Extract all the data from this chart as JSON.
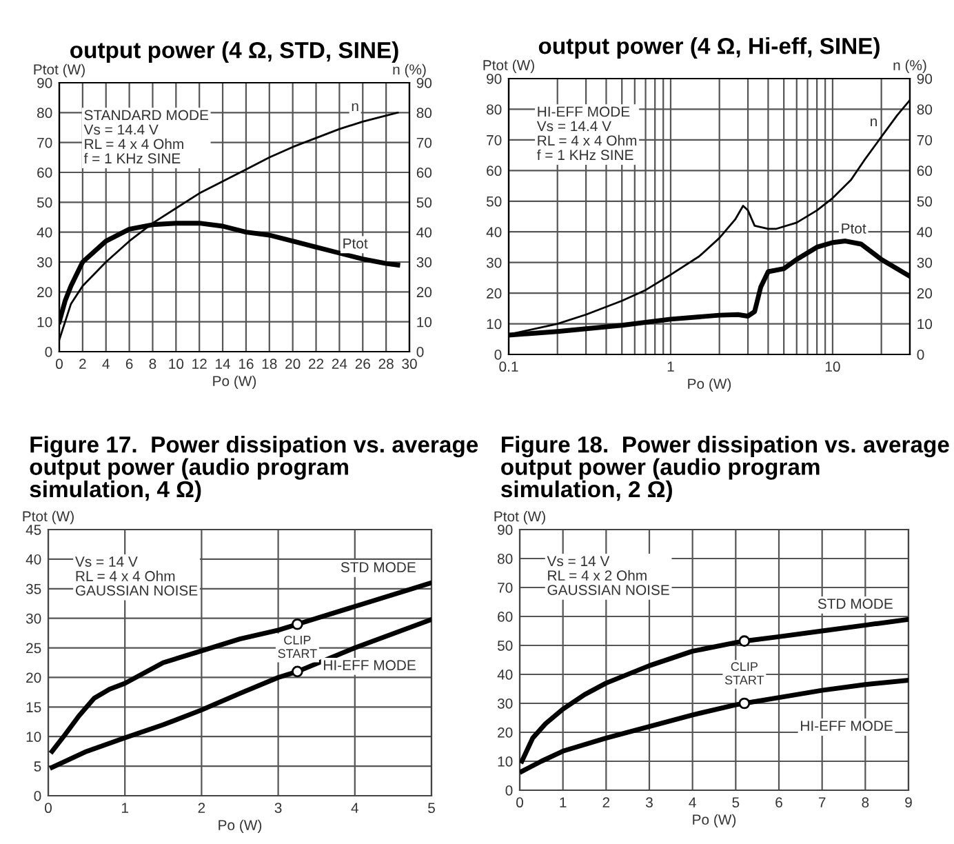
{
  "chart_data": [
    {
      "type": "line",
      "title": "output power (4 Ω, STD, SINE)",
      "xlabel": "Po (W)",
      "ylabel": "Ptot (W)",
      "y2label": "n (%)",
      "xlim": [
        0,
        30
      ],
      "xticks": [
        0,
        2,
        4,
        6,
        8,
        10,
        12,
        14,
        16,
        18,
        20,
        22,
        24,
        26,
        28,
        30
      ],
      "ylim": [
        0,
        90
      ],
      "yticks": [
        0,
        10,
        20,
        30,
        40,
        50,
        60,
        70,
        80,
        90
      ],
      "y2lim": [
        0,
        90
      ],
      "y2ticks": [
        0,
        10,
        20,
        30,
        40,
        50,
        60,
        70,
        80,
        90
      ],
      "grid": true,
      "annotations": [
        "STANDARD MODE\nVs = 14.4 V\nRL = 4 x 4 Ohm\nf = 1 KHz SINE"
      ],
      "series": [
        {
          "name": "Ptot",
          "color": "#000000",
          "x": [
            0,
            0.5,
            1,
            2,
            4,
            6,
            8,
            10,
            12,
            14,
            16,
            18,
            20,
            22,
            24,
            26,
            28,
            29
          ],
          "values": [
            10,
            17,
            22,
            30,
            37,
            41,
            42.5,
            43,
            43,
            42,
            40,
            39,
            37,
            35,
            33,
            31,
            29.5,
            29
          ]
        },
        {
          "name": "n",
          "color": "#000000",
          "axis": "y2",
          "x": [
            0,
            1,
            2,
            4,
            6,
            8,
            10,
            12,
            14,
            16,
            18,
            20,
            22,
            24,
            26,
            28,
            29
          ],
          "values": [
            4,
            16,
            22,
            30,
            37,
            43,
            48,
            53,
            57,
            61,
            65,
            68.5,
            71.5,
            74.5,
            77,
            79,
            80
          ]
        }
      ]
    },
    {
      "type": "line",
      "title": "output power (4 Ω, Hi-eff, SINE)",
      "xlabel": "Po (W)",
      "ylabel": "Ptot (W)",
      "y2label": "n (%)",
      "log": "x",
      "xlim": [
        0.1,
        30
      ],
      "xticks": [
        0.1,
        1,
        10
      ],
      "ylim": [
        0,
        90
      ],
      "yticks": [
        0,
        10,
        20,
        30,
        40,
        50,
        60,
        70,
        80,
        90
      ],
      "y2lim": [
        0,
        90
      ],
      "y2ticks": [
        0,
        10,
        20,
        30,
        40,
        50,
        60,
        70,
        80,
        90
      ],
      "grid": true,
      "annotations": [
        "HI-EFF MODE\nVs = 14.4 V\nRL = 4 x 4 Ohm\nf = 1 KHz SINE"
      ],
      "series": [
        {
          "name": "Ptot",
          "color": "#000000",
          "x": [
            0.1,
            0.2,
            0.5,
            1,
            2,
            2.6,
            3,
            3.3,
            3.6,
            4,
            5,
            6,
            8,
            10,
            12,
            15,
            20,
            30
          ],
          "values": [
            6.3,
            7.5,
            9.5,
            11.5,
            12.8,
            13,
            12.5,
            14,
            22,
            27,
            28,
            31,
            35,
            36.5,
            37,
            36,
            31,
            25.5
          ]
        },
        {
          "name": "n",
          "color": "#000000",
          "axis": "y2",
          "x": [
            0.1,
            0.2,
            0.3,
            0.5,
            0.7,
            1,
            1.5,
            2,
            2.5,
            2.8,
            3,
            3.3,
            4,
            4.5,
            6,
            8,
            10,
            13,
            16,
            20,
            25,
            30
          ],
          "values": [
            6.5,
            10,
            13,
            17.5,
            21,
            26,
            32,
            38,
            44,
            48.5,
            47,
            42,
            41,
            41,
            43,
            47,
            51,
            57,
            64,
            71,
            78,
            83
          ]
        }
      ]
    },
    {
      "type": "line",
      "title": "Figure 17.  Power dissipation vs. average\noutput power (audio program\nsimulation, 4 Ω)",
      "xlabel": "Po (W)",
      "ylabel": "Ptot (W)",
      "xlim": [
        0,
        5
      ],
      "xticks": [
        0,
        1,
        2,
        3,
        4,
        5
      ],
      "ylim": [
        0,
        45
      ],
      "yticks": [
        0,
        5,
        10,
        15,
        20,
        25,
        30,
        35,
        40,
        45
      ],
      "grid": true,
      "annotations": [
        "Vs = 14 V\nRL = 4 x 4 Ohm\nGAUSSIAN NOISE",
        {
          "text": "CLIP\nSTART",
          "x": 3.25,
          "y": 25
        }
      ],
      "series": [
        {
          "name": "STD MODE",
          "color": "#000000",
          "x": [
            0.05,
            0.2,
            0.4,
            0.6,
            0.8,
            1,
            1.5,
            2,
            2.5,
            3,
            3.25,
            4,
            5
          ],
          "values": [
            7.5,
            10,
            13.5,
            16.5,
            18,
            19,
            22.5,
            24.5,
            26.5,
            28,
            29,
            32,
            36
          ]
        },
        {
          "name": "HI-EFF MODE",
          "color": "#000000",
          "x": [
            0.05,
            0.5,
            1,
            1.5,
            2,
            2.5,
            3,
            3.25,
            4,
            5
          ],
          "values": [
            4.8,
            7.5,
            9.8,
            12,
            14.5,
            17.3,
            20,
            21,
            25,
            29.8
          ]
        },
        {
          "type": "scatter",
          "marker": "circle",
          "color": "#000000",
          "x": [
            3.25,
            3.25
          ],
          "values": [
            29,
            21
          ]
        }
      ]
    },
    {
      "type": "line",
      "title": "Figure 18.  Power dissipation vs. average\noutput power (audio program\nsimulation, 2 Ω)",
      "xlabel": "Po (W)",
      "ylabel": "Ptot (W)",
      "xlim": [
        0,
        9
      ],
      "xticks": [
        0,
        1,
        2,
        3,
        4,
        5,
        6,
        7,
        8,
        9
      ],
      "ylim": [
        0,
        90
      ],
      "yticks": [
        0,
        10,
        20,
        30,
        40,
        50,
        60,
        70,
        80,
        90
      ],
      "grid": true,
      "annotations": [
        "Vs = 14 V\nRL = 4 x 2 Ohm\nGAUSSIAN NOISE",
        {
          "text": "CLIP\nSTART",
          "x": 5.2,
          "y": 40
        }
      ],
      "series": [
        {
          "name": "STD MODE",
          "color": "#000000",
          "x": [
            0.05,
            0.3,
            0.6,
            1,
            1.5,
            2,
            3,
            4,
            5,
            5.2,
            6,
            7,
            8,
            9
          ],
          "values": [
            10,
            18,
            23,
            28,
            33,
            37,
            43,
            48,
            51,
            51.5,
            53,
            55,
            57,
            59
          ]
        },
        {
          "name": "HI-EFF MODE",
          "color": "#000000",
          "x": [
            0.05,
            0.5,
            1,
            2,
            3,
            4,
            5,
            5.2,
            6,
            7,
            8,
            9
          ],
          "values": [
            6.5,
            10,
            13.5,
            18,
            22,
            26,
            29.5,
            30,
            32,
            34.5,
            36.5,
            38
          ]
        },
        {
          "type": "scatter",
          "marker": "circle",
          "color": "#000000",
          "x": [
            5.2,
            5.2
          ],
          "values": [
            51.5,
            30
          ]
        }
      ]
    }
  ]
}
